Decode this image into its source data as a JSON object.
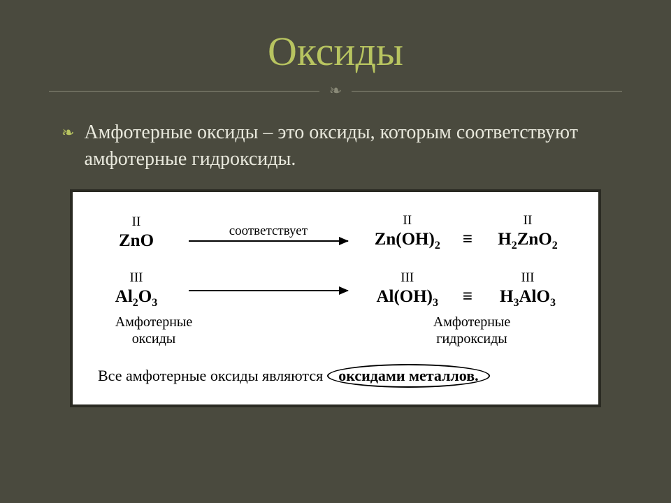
{
  "colors": {
    "background": "#4a4a3e",
    "title": "#b8c460",
    "body_text": "#e8e8dc",
    "divider": "#8a8a78",
    "box_bg": "#ffffff",
    "box_border": "#2a2a22",
    "box_text": "#000000"
  },
  "title": "Оксиды",
  "ornament": "❧",
  "bullet_glyph": "❧",
  "subtitle": "Амфотерные оксиды – это оксиды, которым соответствуют амфотерные гидроксиды.",
  "diagram": {
    "rows": [
      {
        "left": {
          "roman": "II",
          "formula_html": "ZnO"
        },
        "arrow_label": "соответствует",
        "mid": {
          "roman": "II",
          "formula_html": "Zn(OH)<sub>2</sub>"
        },
        "right": {
          "roman": "II",
          "formula_html": "H<sub>2</sub>ZnO<sub>2</sub>"
        }
      },
      {
        "left": {
          "roman": "III",
          "formula_html": "Al<sub>2</sub>O<sub>3</sub>"
        },
        "arrow_label": "",
        "mid": {
          "roman": "III",
          "formula_html": "Al(OH)<sub>3</sub>"
        },
        "right": {
          "roman": "III",
          "formula_html": "H<sub>3</sub>AlO<sub>3</sub>"
        }
      }
    ],
    "left_caption_line1": "Амфотерные",
    "left_caption_line2": "оксиды",
    "right_caption_line1": "Амфотерные",
    "right_caption_line2": "гидроксиды",
    "equiv_symbol": "≡",
    "bottom_prefix": "Все амфотерные оксиды являются ",
    "bottom_circled": "оксидами металлов.",
    "bottom_suffix": ""
  }
}
